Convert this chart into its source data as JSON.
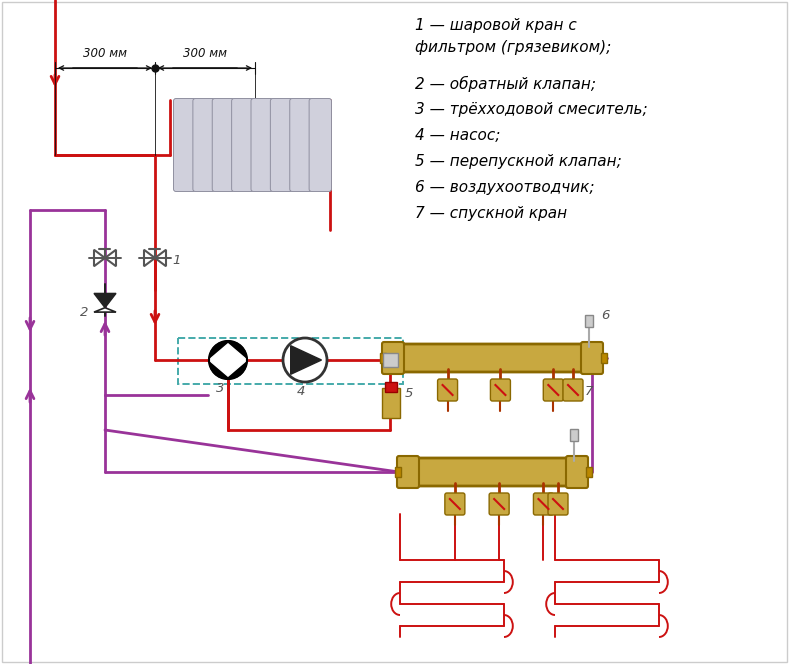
{
  "bg_color": "#ffffff",
  "legend_lines": [
    "1 — шаровой кран с",
    "фильтром (грязевиком);",
    "2 — обратный клапан;",
    "3 — трёхходовой смеситель;",
    "4 — насос;",
    "5 — перепускной клапан;",
    "6 — воздухоотводчик;",
    "7 — спускной кран"
  ],
  "red": "#cc1111",
  "dark_red": "#990000",
  "purple": "#993399",
  "gold": "#c8a840",
  "gold_dark": "#8a6800",
  "gray_rad": "#c0c0cc",
  "gray_rad_edge": "#909098",
  "teal": "#44aaaa",
  "black": "#111111",
  "dim_color": "#222222",
  "label_color": "#555555",
  "figsize": [
    7.89,
    6.64
  ],
  "dpi": 100
}
